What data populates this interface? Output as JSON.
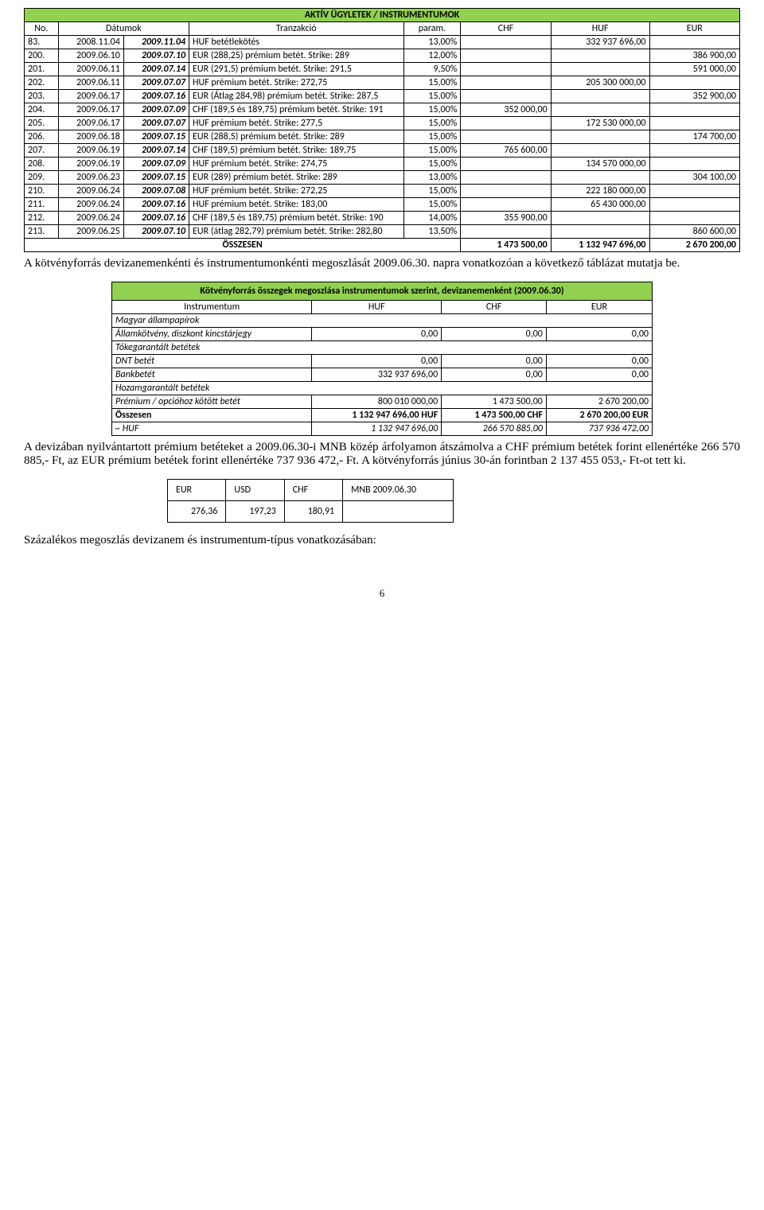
{
  "table1": {
    "title": "AKTÍV ÜGYLETEK / INSTRUMENTUMOK",
    "headers": [
      "No.",
      "Dátumok",
      "",
      "Tranzakció",
      "param.",
      "CHF",
      "HUF",
      "EUR"
    ],
    "rows": [
      {
        "no": "83.",
        "d1": "2008.11.04",
        "d2": "2009.11.04",
        "tr": "HUF betétlekötés",
        "pa": "13,00%",
        "chf": "",
        "huf": "332 937 696,00",
        "eur": ""
      },
      {
        "no": "200.",
        "d1": "2009.06.10",
        "d2": "2009.07.10",
        "tr": "EUR (288,25) prémium betét. Strike: 289",
        "pa": "12,00%",
        "chf": "",
        "huf": "",
        "eur": "386 900,00"
      },
      {
        "no": "201.",
        "d1": "2009.06.11",
        "d2": "2009.07.14",
        "tr": "EUR (291,5) prémium betét. Strike: 291,5",
        "pa": "9,50%",
        "chf": "",
        "huf": "",
        "eur": "591 000,00"
      },
      {
        "no": "202.",
        "d1": "2009.06.11",
        "d2": "2009.07.07",
        "tr": "HUF prémium betét. Strike: 272,75",
        "pa": "15,00%",
        "chf": "",
        "huf": "205 300 000,00",
        "eur": ""
      },
      {
        "no": "203.",
        "d1": "2009.06.17",
        "d2": "2009.07.16",
        "tr": "EUR (Átlag 284,98) prémium betét. Strike: 287,5",
        "pa": "15,00%",
        "chf": "",
        "huf": "",
        "eur": "352 900,00"
      },
      {
        "no": "204.",
        "d1": "2009.06.17",
        "d2": "2009.07.09",
        "tr": "CHF (189,5 és 189,75) prémium betét. Strike: 191",
        "pa": "15,00%",
        "chf": "352 000,00",
        "huf": "",
        "eur": ""
      },
      {
        "no": "205.",
        "d1": "2009.06.17",
        "d2": "2009.07.07",
        "tr": "HUF prémium betét. Strike: 277,5",
        "pa": "15,00%",
        "chf": "",
        "huf": "172 530 000,00",
        "eur": ""
      },
      {
        "no": "206.",
        "d1": "2009.06.18",
        "d2": "2009.07.15",
        "tr": "EUR (288,5) prémium betét. Strike: 289",
        "pa": "15,00%",
        "chf": "",
        "huf": "",
        "eur": "174 700,00"
      },
      {
        "no": "207.",
        "d1": "2009.06.19",
        "d2": "2009.07.14",
        "tr": "CHF (189,5) prémium betét. Strike: 189,75",
        "pa": "15,00%",
        "chf": "765 600,00",
        "huf": "",
        "eur": ""
      },
      {
        "no": "208.",
        "d1": "2009.06.19",
        "d2": "2009.07.09",
        "tr": "HUF prémium betét. Strike: 274,75",
        "pa": "15,00%",
        "chf": "",
        "huf": "134 570 000,00",
        "eur": ""
      },
      {
        "no": "209.",
        "d1": "2009.06.23",
        "d2": "2009.07.15",
        "tr": "EUR (289) prémium betét. Strike: 289",
        "pa": "13,00%",
        "chf": "",
        "huf": "",
        "eur": "304 100,00"
      },
      {
        "no": "210.",
        "d1": "2009.06.24",
        "d2": "2009.07.08",
        "tr": "HUF prémium betét. Strike: 272,25",
        "pa": "15,00%",
        "chf": "",
        "huf": "222 180 000,00",
        "eur": ""
      },
      {
        "no": "211.",
        "d1": "2009.06.24",
        "d2": "2009.07.16",
        "tr": "HUF prémium betét. Strike: 183,00",
        "pa": "15,00%",
        "chf": "",
        "huf": "65 430 000,00",
        "eur": ""
      },
      {
        "no": "212.",
        "d1": "2009.06.24",
        "d2": "2009.07.16",
        "tr": "CHF (189,5 és 189,75) prémium betét. Strike: 190",
        "pa": "14,00%",
        "chf": "355 900,00",
        "huf": "",
        "eur": ""
      },
      {
        "no": "213.",
        "d1": "2009.06.25",
        "d2": "2009.07.10",
        "tr": "EUR (átlag 282,79) prémium betét. Strike: 282,80",
        "pa": "13,50%",
        "chf": "",
        "huf": "",
        "eur": "860 600,00"
      }
    ],
    "sum_label": "ÖSSZESEN",
    "sum_chf": "1 473 500,00",
    "sum_huf": "1 132 947 696,00",
    "sum_eur": "2 670 200,00"
  },
  "para1": "A kötvényforrás devizanemenkénti és instrumentumonkénti megoszlását 2009.06.30. napra vonatkozóan a következő táblázat mutatja be.",
  "table2": {
    "title": "Kötvényforrás összegek megoszlása instrumentumok szerint, devizanemenként (2009.06.30)",
    "headers": [
      "Instrumentum",
      "HUF",
      "CHF",
      "EUR"
    ],
    "sections": [
      {
        "label": "Magyar állampapírok",
        "rows": [
          {
            "name": "Államkötvény, diszkont kincstárjegy",
            "huf": "0,00",
            "chf": "0,00",
            "eur": "0,00"
          }
        ]
      },
      {
        "label": "Tőkegarantált betétek",
        "rows": [
          {
            "name": "DNT betét",
            "huf": "0,00",
            "chf": "0,00",
            "eur": "0,00"
          },
          {
            "name": "Bankbetét",
            "huf": "332 937 696,00",
            "chf": "0,00",
            "eur": "0,00"
          }
        ]
      },
      {
        "label": "Hozamgarantált betétek",
        "rows": [
          {
            "name": "Prémium / opcióhoz kötött betét",
            "huf": "800 010 000,00",
            "chf": "1 473 500,00",
            "eur": "2 670 200,00"
          }
        ]
      }
    ],
    "sum_label": "Összesen",
    "sum_huf": "1 132 947 696,00 HUF",
    "sum_chf": "1 473 500,00 CHF",
    "sum_eur": "2 670 200,00 EUR",
    "approx_label": "~ HUF",
    "approx_huf": "1 132 947 696,00",
    "approx_chf": "266 570 885,00",
    "approx_eur": "737 936 472,00"
  },
  "para2": "A devizában nyilvántartott prémium betéteket a 2009.06.30-i MNB közép árfolyamon átszámolva a CHF prémium betétek forint ellenértéke 266 570 885,- Ft, az EUR prémium betétek forint ellenértéke 737 936 472,- Ft. A kötvényforrás június 30-án forintban 2 137 455 053,- Ft-ot tett ki.",
  "table3": {
    "headers": [
      "EUR",
      "USD",
      "CHF",
      "MNB 2009.06.30"
    ],
    "values": [
      "276,36",
      "197,23",
      "180,91",
      ""
    ]
  },
  "para3": "Százalékos megoszlás devizanem és instrumentum-típus vonatkozásában:",
  "pagenum": "6",
  "colors": {
    "green": "#92d050",
    "border": "#000000"
  }
}
